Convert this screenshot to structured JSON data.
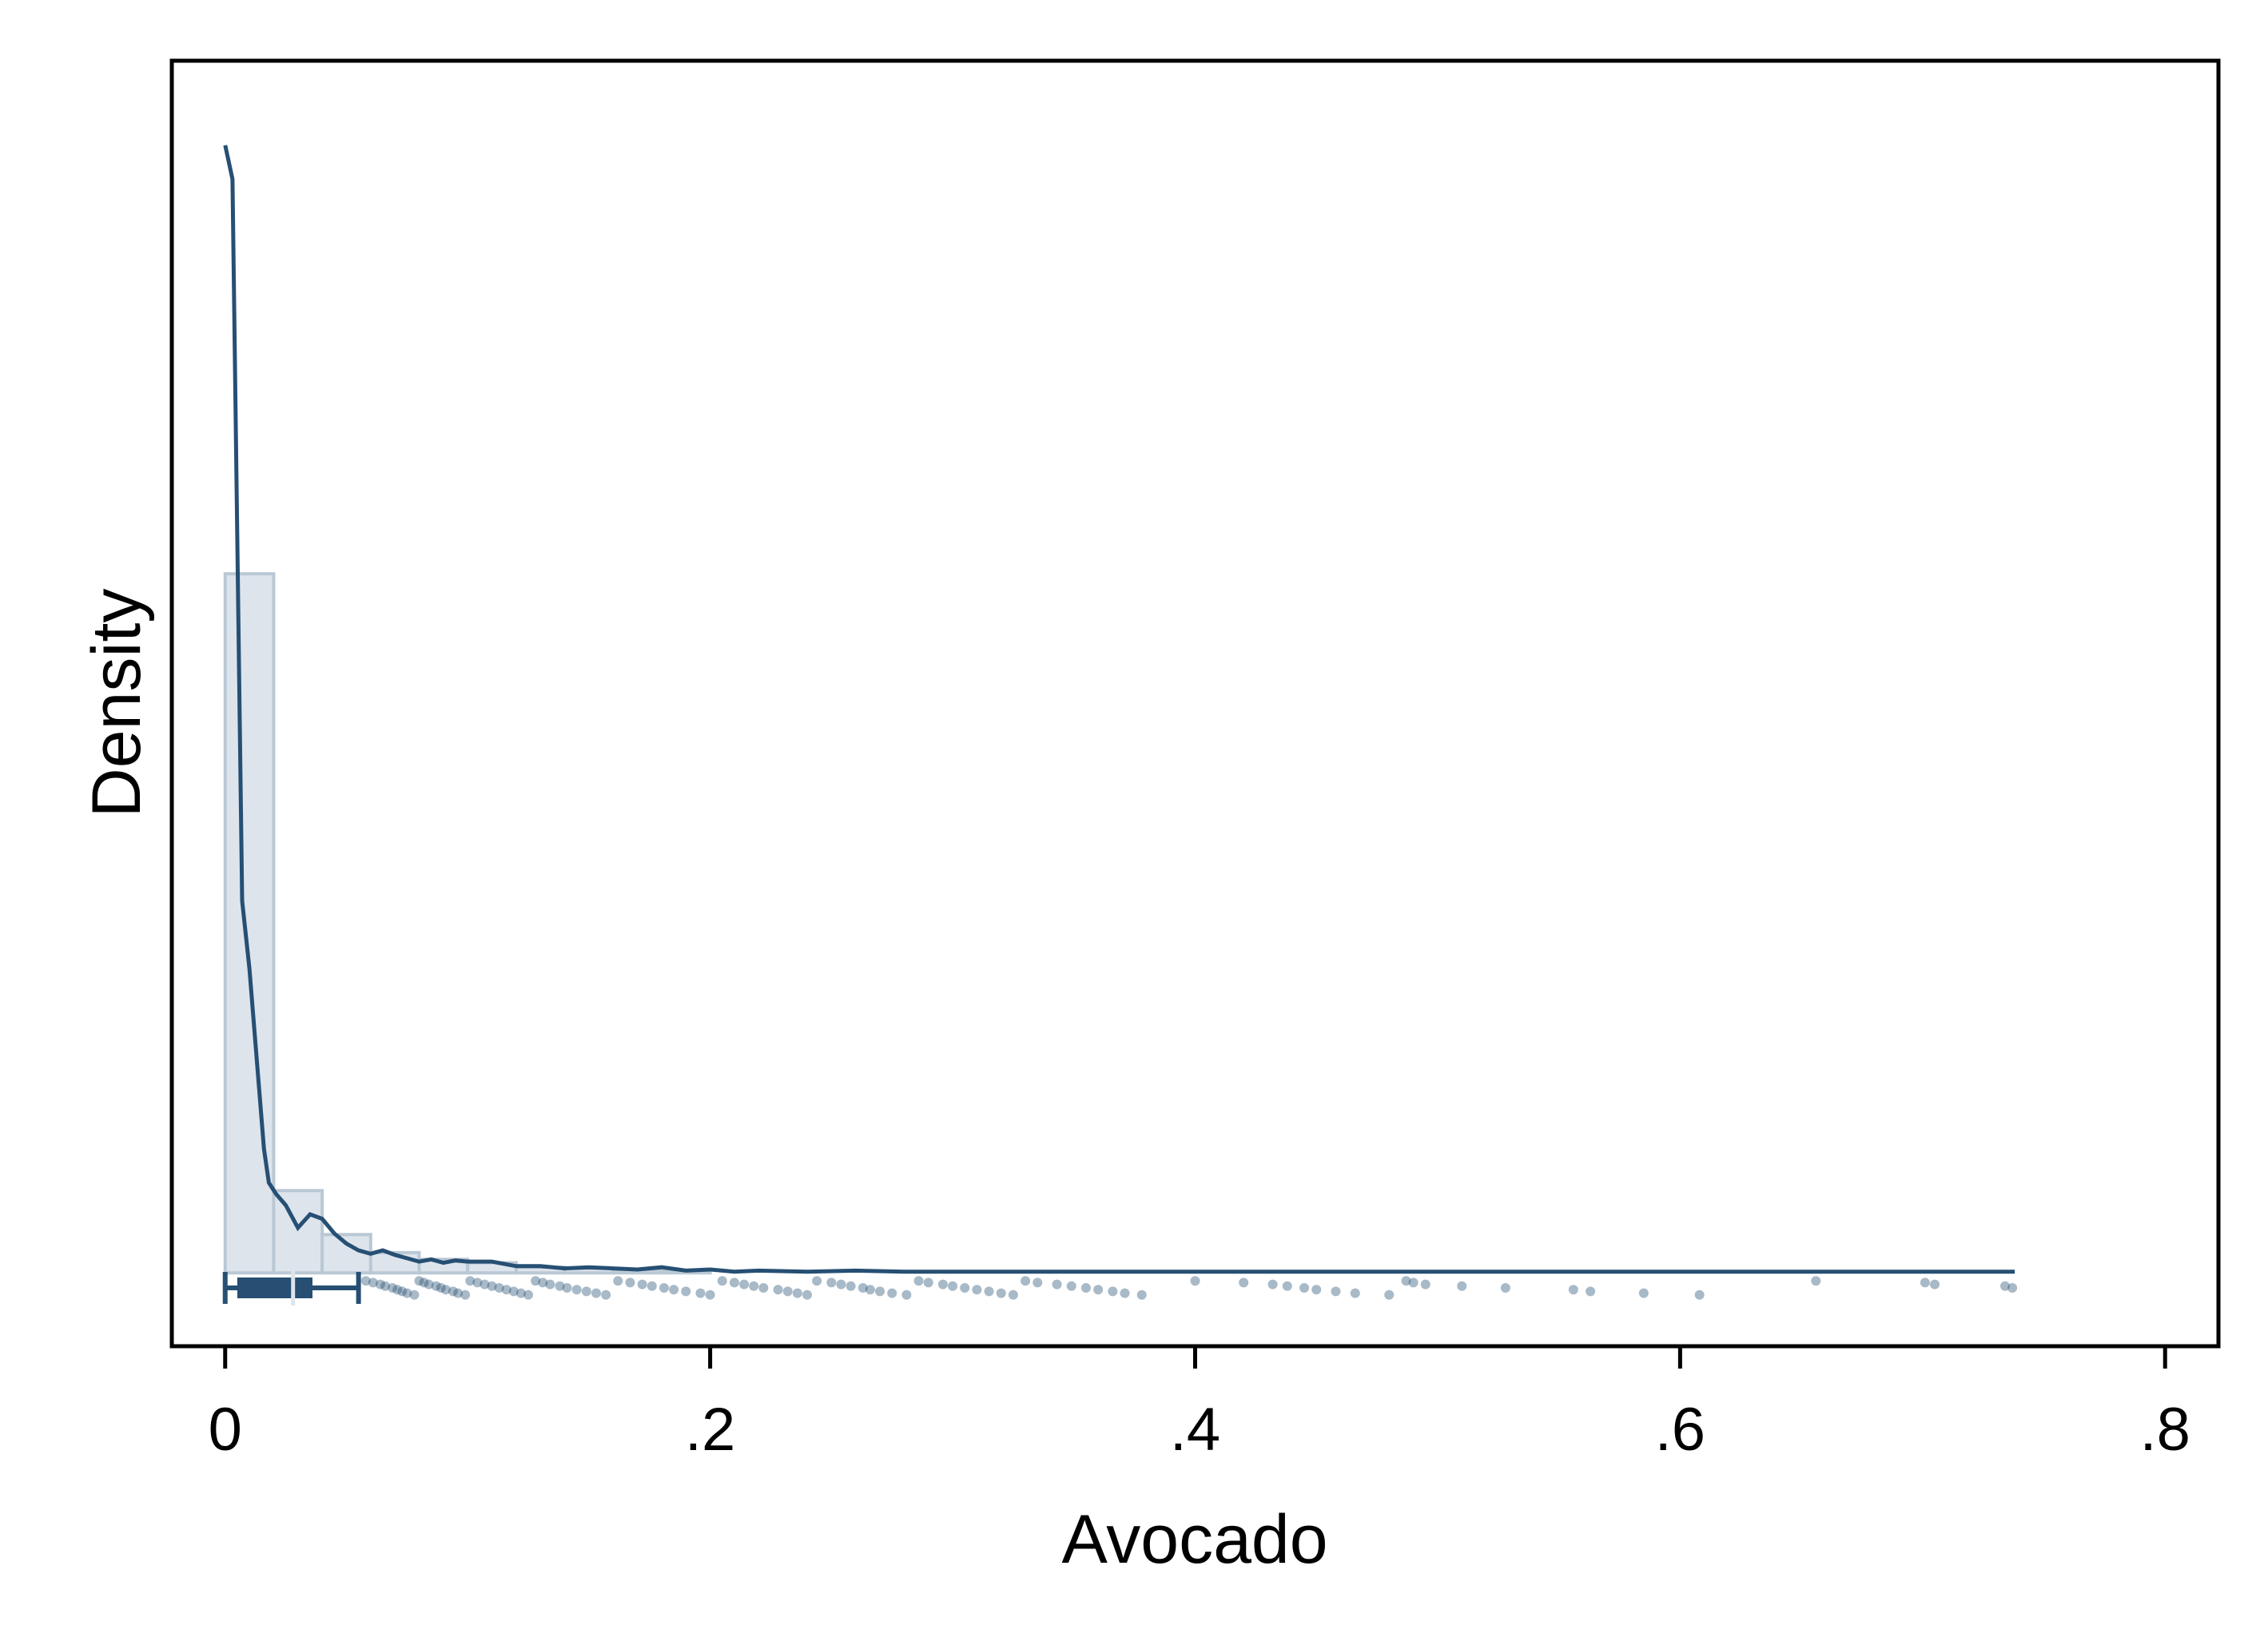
{
  "chart_data": {
    "type": "histogram",
    "title": "",
    "xlabel": "Avocado",
    "ylabel": "Density",
    "xlim": [
      -0.022,
      0.822
    ],
    "ylim": [
      -0.065,
      1.075
    ],
    "x_ticks": [
      {
        "value": 0.0,
        "label": "0"
      },
      {
        "value": 0.2,
        "label": ".2"
      },
      {
        "value": 0.4,
        "label": ".4"
      },
      {
        "value": 0.6,
        "label": ".6"
      },
      {
        "value": 0.8,
        "label": ".8"
      }
    ],
    "y_ticks_shown": false,
    "histogram": {
      "bin_width": 0.02,
      "bins": [
        {
          "x0": 0.0,
          "density": 0.62
        },
        {
          "x0": 0.02,
          "density": 0.073
        },
        {
          "x0": 0.04,
          "density": 0.034
        },
        {
          "x0": 0.06,
          "density": 0.018
        },
        {
          "x0": 0.08,
          "density": 0.012
        },
        {
          "x0": 0.1,
          "density": 0.009
        },
        {
          "x0": 0.12,
          "density": 0.005
        },
        {
          "x0": 0.14,
          "density": 0.004
        },
        {
          "x0": 0.16,
          "density": 0.003
        },
        {
          "x0": 0.18,
          "density": 0.002
        }
      ]
    },
    "kde_curve": {
      "x": [
        0.0,
        0.003,
        0.007,
        0.01,
        0.013,
        0.016,
        0.018,
        0.021,
        0.025,
        0.03,
        0.035,
        0.04,
        0.045,
        0.05,
        0.055,
        0.06,
        0.065,
        0.07,
        0.075,
        0.08,
        0.085,
        0.09,
        0.095,
        0.1,
        0.11,
        0.12,
        0.13,
        0.14,
        0.15,
        0.16,
        0.17,
        0.18,
        0.19,
        0.2,
        0.21,
        0.22,
        0.24,
        0.26,
        0.28,
        0.3,
        0.34,
        0.38,
        0.42,
        0.46,
        0.5,
        0.55,
        0.6,
        0.65,
        0.7,
        0.738
      ],
      "y": [
        1.0,
        0.97,
        0.33,
        0.27,
        0.19,
        0.11,
        0.08,
        0.07,
        0.06,
        0.04,
        0.052,
        0.048,
        0.035,
        0.026,
        0.02,
        0.017,
        0.02,
        0.016,
        0.013,
        0.01,
        0.012,
        0.009,
        0.011,
        0.01,
        0.01,
        0.006,
        0.006,
        0.004,
        0.005,
        0.004,
        0.003,
        0.005,
        0.002,
        0.003,
        0.001,
        0.002,
        0.001,
        0.002,
        0.001,
        0.001,
        0.001,
        0.001,
        0.001,
        0.001,
        0.001,
        0.001,
        0.001,
        0.001,
        0.001,
        0.001
      ]
    },
    "boxplot": {
      "whisker_low": 0.0,
      "q1": 0.005,
      "median": 0.028,
      "q3": 0.036,
      "whisker_high": 0.055
    },
    "rug_points": [
      0.058,
      0.061,
      0.064,
      0.066,
      0.069,
      0.071,
      0.073,
      0.075,
      0.078,
      0.08,
      0.082,
      0.084,
      0.087,
      0.089,
      0.091,
      0.094,
      0.096,
      0.099,
      0.101,
      0.104,
      0.107,
      0.11,
      0.113,
      0.116,
      0.119,
      0.122,
      0.125,
      0.128,
      0.131,
      0.134,
      0.138,
      0.141,
      0.145,
      0.149,
      0.153,
      0.157,
      0.162,
      0.167,
      0.172,
      0.176,
      0.181,
      0.185,
      0.19,
      0.196,
      0.2,
      0.205,
      0.21,
      0.214,
      0.218,
      0.222,
      0.228,
      0.232,
      0.236,
      0.24,
      0.244,
      0.25,
      0.254,
      0.258,
      0.263,
      0.266,
      0.27,
      0.275,
      0.281,
      0.286,
      0.29,
      0.296,
      0.3,
      0.305,
      0.31,
      0.315,
      0.32,
      0.325,
      0.33,
      0.335,
      0.343,
      0.349,
      0.355,
      0.36,
      0.366,
      0.371,
      0.378,
      0.4,
      0.42,
      0.432,
      0.438,
      0.445,
      0.45,
      0.458,
      0.466,
      0.48,
      0.487,
      0.49,
      0.495,
      0.51,
      0.528,
      0.556,
      0.563,
      0.585,
      0.608,
      0.656,
      0.701,
      0.705,
      0.734,
      0.737
    ],
    "colors": {
      "kde_line": "#264f73",
      "bar_fill": "#dde4ec",
      "bar_edge": "#bac8d5",
      "points": "#264f73",
      "box": "#264f73",
      "frame": "#000000"
    }
  }
}
